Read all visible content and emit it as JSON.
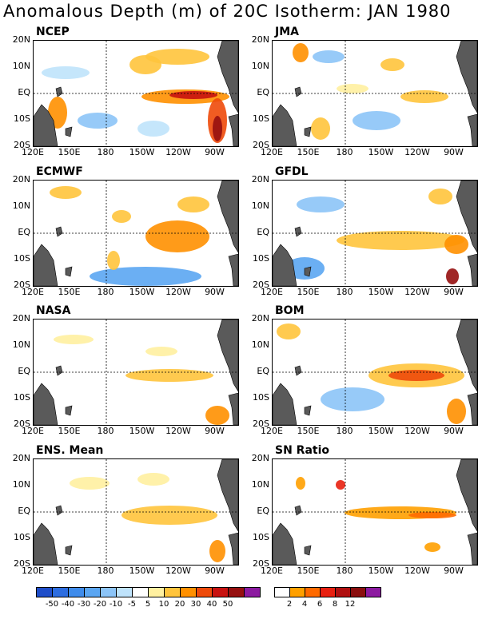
{
  "title": "Anomalous Depth (m) of 20C Isotherm: JAN 1980",
  "lat_labels": [
    "20N",
    "10N",
    "EQ",
    "10S",
    "20S"
  ],
  "lon_labels": [
    "120E",
    "150E",
    "180",
    "150W",
    "120W",
    "90W"
  ],
  "panels": [
    {
      "name": "NCEP"
    },
    {
      "name": "JMA"
    },
    {
      "name": "ECMWF"
    },
    {
      "name": "GFDL"
    },
    {
      "name": "NASA"
    },
    {
      "name": "BOM"
    },
    {
      "name": "ENS. Mean"
    },
    {
      "name": "SN Ratio"
    }
  ],
  "colorbar_anomaly": {
    "labels": [
      "-50",
      "-40",
      "-30",
      "-20",
      "-10",
      "-5",
      "5",
      "10",
      "20",
      "30",
      "40",
      "50"
    ],
    "colors": [
      "#1f4ec9",
      "#2d6de0",
      "#3f8ceb",
      "#5ba6f2",
      "#8cc4f7",
      "#bfe3fb",
      "#ffffff",
      "#fff0a0",
      "#ffc43c",
      "#ff9000",
      "#ee4a0a",
      "#c81210",
      "#961010",
      "#8c1aa0"
    ]
  },
  "colorbar_ratio": {
    "labels": [
      "2",
      "4",
      "6",
      "8",
      "12"
    ],
    "colors": [
      "#ffffff",
      "#ffa000",
      "#ff6a00",
      "#e82010",
      "#b01010",
      "#8a0e0e",
      "#8c1aa0"
    ]
  },
  "colors": {
    "land": "#5a5a5a"
  }
}
